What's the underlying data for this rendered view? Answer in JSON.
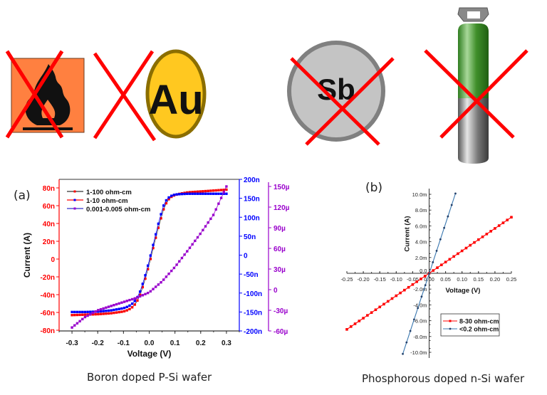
{
  "icons": [
    {
      "name": "flammable-hazard",
      "kind": "flame-square",
      "bg": "#FF8040",
      "crossed": true
    },
    {
      "name": "gold-element",
      "kind": "circle-label",
      "label": "Au",
      "fill": "#FFC820",
      "ring": "#8B6E00",
      "crossed": true
    },
    {
      "name": "antimony-element",
      "kind": "circle-label",
      "label": "Sb",
      "fill": "#C4C4C4",
      "ring": "#808080",
      "crossed": true
    },
    {
      "name": "gas-cylinder",
      "kind": "cylinder",
      "top": "#2E8B1E",
      "bottom": "#8A8A8A",
      "crossed": true
    }
  ],
  "cross_color": "#FF0000",
  "panel_a": {
    "label": "(a)",
    "caption": "Boron doped P-Si wafer"
  },
  "panel_b": {
    "label": "(b)",
    "caption": "Phosphorous doped n-Si wafer"
  },
  "chart_data": [
    {
      "type": "line",
      "title": "(a)",
      "xlabel": "Voltage (V)",
      "ylabel": "Current (A)",
      "xlim": [
        -0.35,
        0.35
      ],
      "xticks": [
        "-0.3",
        "-0.2",
        "-0.1",
        "0.0",
        "0.1",
        "0.2",
        "0.3"
      ],
      "axes": {
        "left": {
          "color": "#FF0000",
          "ylim": [
            -80,
            80
          ],
          "unit": "n",
          "ticks": [
            "80n",
            "60n",
            "40n",
            "20n",
            "0",
            "-20n",
            "-40n",
            "-60n",
            "-80n"
          ]
        },
        "right1": {
          "color": "#0000FF",
          "ylim": [
            -200,
            200
          ],
          "unit": "n",
          "ticks": [
            "200n",
            "150n",
            "100n",
            "50n",
            "0",
            "-50n",
            "-100n",
            "-150n",
            "-200n"
          ]
        },
        "right2": {
          "color": "#9900CC",
          "ylim": [
            -60,
            150
          ],
          "unit": "µ",
          "ticks": [
            "150µ",
            "120µ",
            "90µ",
            "60µ",
            "30µ",
            "0",
            "-30µ",
            "-60µ"
          ]
        }
      },
      "legend": [
        "1-100 ohm-cm",
        "1-10 ohm-cm",
        "0.001-0.005 ohm-cm"
      ],
      "series": [
        {
          "name": "1-100 ohm-cm",
          "color": "#FF0000",
          "axis": "left",
          "x": [
            -0.3,
            -0.25,
            -0.2,
            -0.15,
            -0.1,
            -0.08,
            -0.06,
            -0.04,
            -0.02,
            0.0,
            0.02,
            0.04,
            0.06,
            0.08,
            0.1,
            0.12,
            0.15,
            0.2,
            0.25,
            0.3
          ],
          "y": [
            -63,
            -62.5,
            -62,
            -61,
            -59,
            -57,
            -53,
            -44,
            -27,
            -6,
            18,
            40,
            60,
            69,
            72,
            73.5,
            75,
            76,
            77,
            78
          ]
        },
        {
          "name": "1-10 ohm-cm",
          "color": "#0000FF",
          "axis": "right1",
          "x": [
            -0.3,
            -0.25,
            -0.2,
            -0.15,
            -0.1,
            -0.08,
            -0.06,
            -0.04,
            -0.02,
            0.0,
            0.02,
            0.04,
            0.06,
            0.08,
            0.1,
            0.12,
            0.15,
            0.2,
            0.25,
            0.3
          ],
          "y": [
            -150,
            -150,
            -149,
            -146,
            -140,
            -135,
            -125,
            -105,
            -65,
            -15,
            40,
            95,
            140,
            155,
            160,
            161,
            162,
            162,
            162,
            162
          ]
        },
        {
          "name": "0.001-0.005 ohm-cm",
          "color": "#9900CC",
          "axis": "right2",
          "x": [
            -0.3,
            -0.25,
            -0.2,
            -0.15,
            -0.1,
            -0.05,
            0.0,
            0.05,
            0.1,
            0.15,
            0.2,
            0.25,
            0.3
          ],
          "y": [
            -55,
            -40,
            -30,
            -24,
            -18,
            -12,
            -4,
            12,
            33,
            57,
            82,
            109,
            150
          ]
        }
      ]
    },
    {
      "type": "line",
      "title": "(b)",
      "xlabel": "Voltage (V)",
      "ylabel": "Current (A)",
      "xlim": [
        -0.25,
        0.25
      ],
      "ylim": [
        -10,
        10
      ],
      "xticks": [
        "-0.25",
        "-0.20",
        "-0.15",
        "-0.10",
        "-0.05",
        "0.00",
        "0.05",
        "0.10",
        "0.15",
        "0.20",
        "0.25"
      ],
      "yticks": [
        "10.0m",
        "8.0m",
        "6.0m",
        "4.0m",
        "2.0m",
        "0.0",
        "-2.0m",
        "-4.0m",
        "-6.0m",
        "-8.0m",
        "-10.0m"
      ],
      "legend": [
        "8-30 ohm-cm",
        "<0.2 ohm-cm"
      ],
      "series": [
        {
          "name": "8-30 ohm-cm",
          "color": "#FF0000",
          "x": [
            -0.25,
            0.25
          ],
          "y": [
            -7.1,
            7.1
          ],
          "points": 41
        },
        {
          "name": "<0.2 ohm-cm",
          "color": "#3B78B0",
          "x": [
            -0.08,
            0.08
          ],
          "y": [
            -10.2,
            10.1
          ],
          "points": 15
        }
      ]
    }
  ]
}
